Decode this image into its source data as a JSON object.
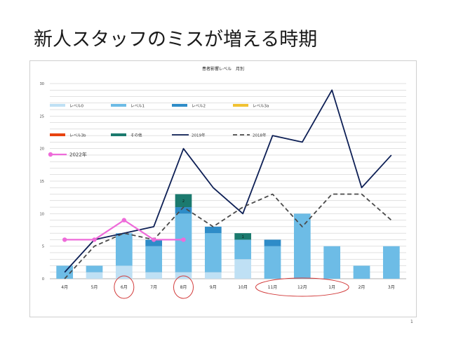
{
  "slide": {
    "title": "新人スタッフのミスが増える時期",
    "page_number": "1"
  },
  "chart_data": {
    "type": "bar",
    "title": "患者影響レベル　月別",
    "categories": [
      "4月",
      "5月",
      "6月",
      "7月",
      "8月",
      "9月",
      "10月",
      "11月",
      "12月",
      "1月",
      "2月",
      "3月"
    ],
    "ylim": [
      0,
      30
    ],
    "yticks": [
      0,
      5,
      10,
      15,
      20,
      25,
      30
    ],
    "grid": true,
    "legend_position": "top-left",
    "stacked": true,
    "series": [
      {
        "name": "レベル0",
        "kind": "bar",
        "color": "#bfe0f4",
        "values": [
          0,
          1,
          2,
          1,
          1,
          1,
          3,
          0,
          0,
          0,
          0,
          0
        ]
      },
      {
        "name": "レベル1",
        "kind": "bar",
        "color": "#6dbce6",
        "values": [
          2,
          1,
          5,
          4,
          9,
          6,
          3,
          5,
          10,
          5,
          2,
          5
        ]
      },
      {
        "name": "レベル2",
        "kind": "bar",
        "color": "#2e8cc8",
        "values": [
          0,
          0,
          0,
          1,
          1,
          1,
          0,
          1,
          0,
          0,
          0,
          0
        ]
      },
      {
        "name": "レベル3a",
        "kind": "bar",
        "color": "#f1c232",
        "values": [
          0,
          0,
          0,
          0,
          0,
          0,
          0,
          0,
          0,
          0,
          0,
          0
        ]
      },
      {
        "name": "レベル3b",
        "kind": "bar",
        "color": "#e8430f",
        "values": [
          0,
          0,
          0,
          0,
          0,
          0,
          0,
          0,
          0,
          0,
          0,
          0
        ]
      },
      {
        "name": "その他",
        "kind": "bar",
        "color": "#1b7a6e",
        "values": [
          0,
          0,
          0,
          0,
          2,
          0,
          1,
          0,
          0,
          0,
          0,
          0
        ]
      },
      {
        "name": "2019年",
        "kind": "line",
        "color": "#0d1f55",
        "values": [
          1,
          6,
          7,
          8,
          20,
          14,
          10,
          22,
          21,
          29,
          14,
          19
        ]
      },
      {
        "name": "2018年",
        "kind": "line",
        "dash": true,
        "color": "#4a4a4a",
        "values": [
          0,
          5,
          7,
          6,
          11,
          8,
          11,
          13,
          8,
          13,
          13,
          9
        ]
      },
      {
        "name": "2022年",
        "kind": "line",
        "marker": true,
        "color": "#ee6bd9",
        "values": [
          6,
          6,
          9,
          6,
          6,
          null,
          null,
          null,
          null,
          null,
          null,
          null
        ]
      }
    ],
    "data_labels": [
      {
        "category": "8月",
        "series": "その他",
        "text": "2"
      },
      {
        "category": "10月",
        "series": "その他",
        "text": "1"
      }
    ],
    "highlight_circles": [
      "6月",
      "8月",
      "11月",
      "12月",
      "1月"
    ],
    "highlight_color": "#d23a3a"
  }
}
